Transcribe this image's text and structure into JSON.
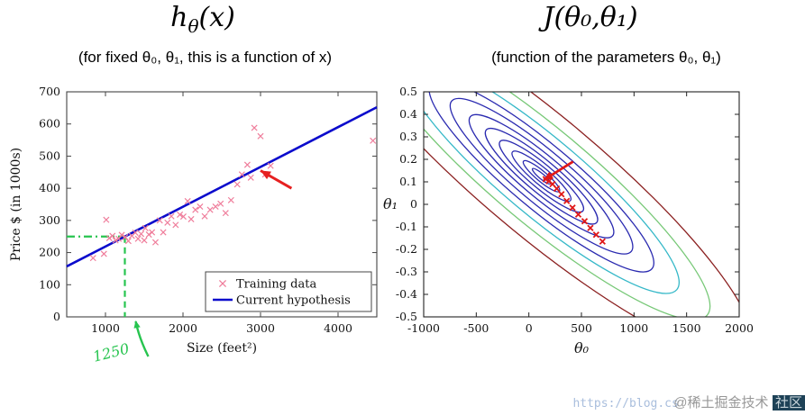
{
  "slide": {
    "left": {
      "title_main": "h",
      "title_sub": "θ",
      "title_tail": "(x)",
      "subtitle": "(for fixed θ₀, θ₁, this is a function of x)"
    },
    "right": {
      "title": "J(θ₀,θ₁)",
      "subtitle": "(function of the parameters θ₀, θ₁)"
    }
  },
  "watermark": {
    "url": "https://blog.cs",
    "handle": "@稀土掘金技术",
    "badge": "社区"
  },
  "chart_data": [
    {
      "type": "scatter",
      "title": "hθ(x)",
      "xlabel": "Size (feet²)",
      "ylabel": "Price $ (in 1000s)",
      "xlim": [
        500,
        4500
      ],
      "ylim": [
        0,
        700
      ],
      "xticks": [
        1000,
        2000,
        3000,
        4000
      ],
      "yticks": [
        0,
        100,
        200,
        300,
        400,
        500,
        600,
        700
      ],
      "legend": [
        "Training data",
        "Current hypothesis"
      ],
      "colors": {
        "points": "#ef7d9b",
        "line": "#0b0bcc",
        "green": "#27c44f",
        "red": "#e62020"
      },
      "line": {
        "x": [
          500,
          4500
        ],
        "y": [
          157,
          652
        ]
      },
      "points": [
        [
          840,
          183
        ],
        [
          980,
          196
        ],
        [
          1010,
          302
        ],
        [
          1050,
          245
        ],
        [
          1090,
          252
        ],
        [
          1130,
          238
        ],
        [
          1170,
          243
        ],
        [
          1210,
          255
        ],
        [
          1255,
          248
        ],
        [
          1295,
          236
        ],
        [
          1340,
          252
        ],
        [
          1385,
          262
        ],
        [
          1420,
          243
        ],
        [
          1460,
          258
        ],
        [
          1500,
          238
        ],
        [
          1515,
          276
        ],
        [
          1560,
          256
        ],
        [
          1600,
          263
        ],
        [
          1645,
          232
        ],
        [
          1700,
          300
        ],
        [
          1745,
          263
        ],
        [
          1800,
          293
        ],
        [
          1850,
          313
        ],
        [
          1905,
          286
        ],
        [
          1960,
          318
        ],
        [
          2005,
          312
        ],
        [
          2060,
          360
        ],
        [
          2105,
          304
        ],
        [
          2160,
          333
        ],
        [
          2220,
          343
        ],
        [
          2280,
          313
        ],
        [
          2350,
          333
        ],
        [
          2420,
          343
        ],
        [
          2485,
          352
        ],
        [
          2550,
          323
        ],
        [
          2620,
          363
        ],
        [
          2700,
          412
        ],
        [
          2760,
          443
        ],
        [
          2830,
          473
        ],
        [
          2875,
          433
        ],
        [
          2920,
          588
        ],
        [
          3000,
          562
        ],
        [
          3060,
          443
        ],
        [
          3130,
          470
        ],
        [
          4450,
          548
        ]
      ],
      "annotations": {
        "red_arrow": {
          "from": [
            3400,
            400
          ],
          "to": [
            3000,
            455
          ]
        },
        "green": {
          "hline_y": 250,
          "hline_x": [
            500,
            1250
          ],
          "vline_x": 1250,
          "label": "1250"
        }
      }
    },
    {
      "type": "contour",
      "title": "J(θ₀,θ₁)",
      "xlabel": "θ₀",
      "ylabel": "θ₁",
      "xlim": [
        -1000,
        2000
      ],
      "ylim": [
        -0.5,
        0.5
      ],
      "xticks": [
        -1000,
        -500,
        0,
        500,
        1000,
        1500,
        2000
      ],
      "yticks": [
        0.5,
        0.4,
        0.3,
        0.2,
        0.1,
        0,
        -0.1,
        -0.2,
        -0.3,
        -0.4,
        -0.5
      ],
      "center": [
        120,
        0.125
      ],
      "tilt_deg": 40,
      "aspect": 0.22,
      "levels": [
        {
          "r": 13,
          "color": "#2a2ab0"
        },
        {
          "r": 26,
          "color": "#2a2ab0"
        },
        {
          "r": 42,
          "color": "#2a2ab0"
        },
        {
          "r": 60,
          "color": "#2a2ab0"
        },
        {
          "r": 80,
          "color": "#2a2ab0"
        },
        {
          "r": 103,
          "color": "#2a2ab0"
        },
        {
          "r": 130,
          "color": "#2a2ab0"
        },
        {
          "r": 160,
          "color": "#2a2ab0"
        },
        {
          "r": 196,
          "color": "#35b8c8"
        },
        {
          "r": 240,
          "color": "#77c877"
        },
        {
          "r": 300,
          "color": "#8b2020"
        }
      ],
      "descent_path": [
        [
          700,
          -0.165
        ],
        [
          640,
          -0.135
        ],
        [
          585,
          -0.105
        ],
        [
          530,
          -0.075
        ],
        [
          470,
          -0.045
        ],
        [
          415,
          -0.015
        ],
        [
          360,
          0.015
        ],
        [
          310,
          0.045
        ],
        [
          265,
          0.07
        ],
        [
          225,
          0.09
        ],
        [
          190,
          0.103
        ],
        [
          160,
          0.112
        ]
      ],
      "colors": {
        "red": "#e01818"
      },
      "annotations": {
        "red_arrow": {
          "from": [
            420,
            0.19
          ],
          "to": [
            140,
            0.108
          ]
        }
      }
    }
  ]
}
